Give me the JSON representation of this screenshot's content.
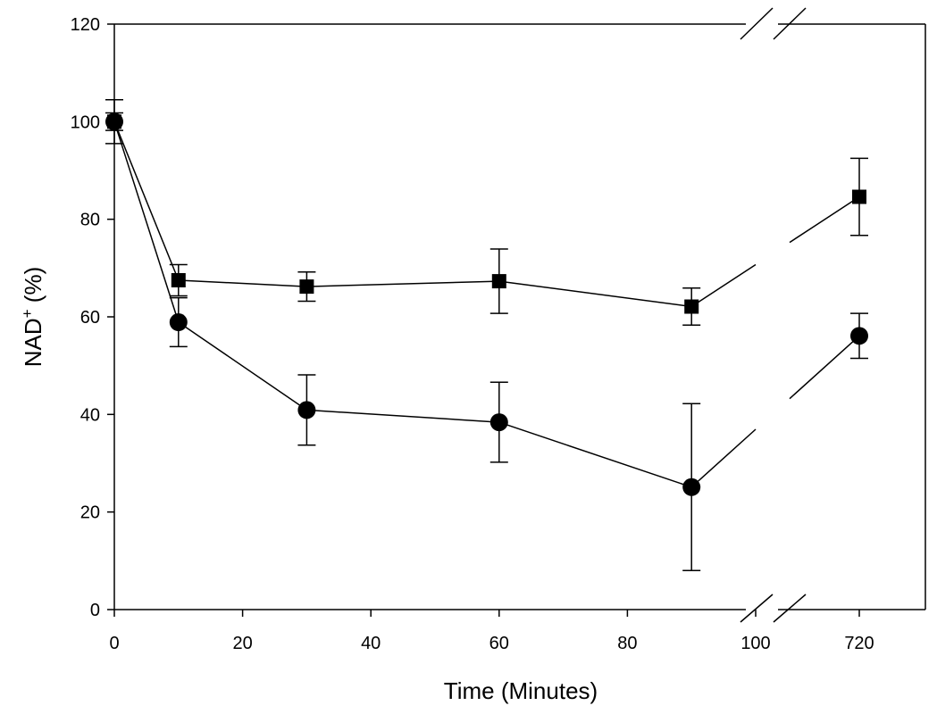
{
  "chart_data": {
    "type": "line",
    "xlabel": "Time (Minutes)",
    "ylabel_main": "NAD",
    "ylabel_sup": "+",
    "ylabel_rest": " (%)",
    "ylim": [
      0,
      120
    ],
    "y_ticks": [
      "0",
      "20",
      "40",
      "60",
      "80",
      "100",
      "120"
    ],
    "x_ticks": [
      "0",
      "20",
      "40",
      "60",
      "80",
      "100",
      "720"
    ],
    "x_axis_break": [
      100,
      720
    ],
    "series": [
      {
        "marker": "square",
        "points": [
          {
            "x": 0,
            "y": 100,
            "err": 4.5
          },
          {
            "x": 10,
            "y": 67.5,
            "err": 3.2
          },
          {
            "x": 30,
            "y": 66.2,
            "err": 3.0
          },
          {
            "x": 60,
            "y": 67.3,
            "err": 6.6
          },
          {
            "x": 90,
            "y": 62.1,
            "err": 3.8
          },
          {
            "x": 720,
            "y": 84.6,
            "err": 7.9
          }
        ]
      },
      {
        "marker": "circle",
        "points": [
          {
            "x": 0,
            "y": 100,
            "err": 1.8
          },
          {
            "x": 10,
            "y": 58.9,
            "err": 5.0
          },
          {
            "x": 30,
            "y": 40.9,
            "err": 7.2
          },
          {
            "x": 60,
            "y": 38.4,
            "err": 8.2
          },
          {
            "x": 90,
            "y": 25.1,
            "err": 17.1
          },
          {
            "x": 720,
            "y": 56.1,
            "err": 4.6
          }
        ]
      }
    ]
  }
}
